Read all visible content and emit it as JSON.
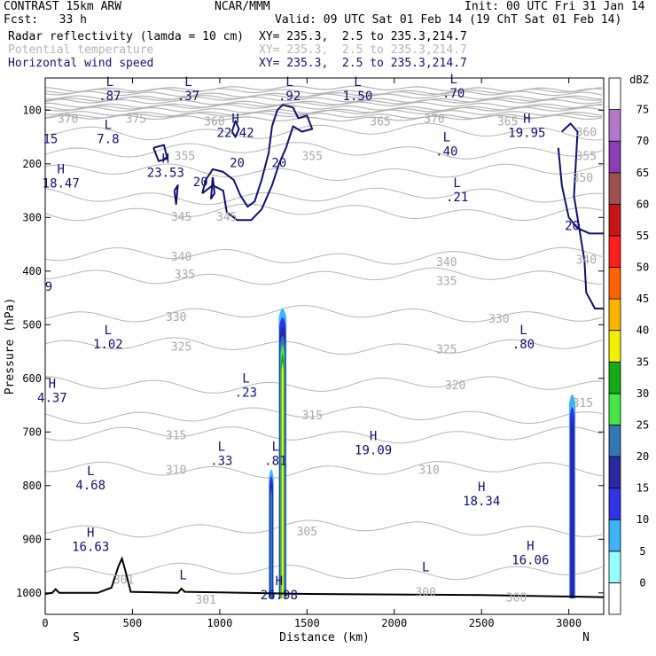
{
  "header": {
    "model": "CONTRAST 15km ARW",
    "center": "NCAR/MMM",
    "init": "Init: 00 UTC Fri 31 Jan 14",
    "fcst": "Fcst:   33 h",
    "valid": "Valid: 09 UTC Sat 01 Feb 14 (19 ChT Sat 01 Feb 14)",
    "fields": [
      {
        "name": "Radar reflectivity (lamda = 10 cm)",
        "xy": "XY= 235.3,  2.5 to 235.3,214.7",
        "color": "#000000"
      },
      {
        "name": "Potential temperature",
        "xy": "XY= 235.3,  2.5 to 235.3,214.7",
        "color": "#b4b4b4"
      },
      {
        "name": "Horizontal wind speed",
        "xy": "XY= 235.3,  2.5 to 235.3,214.7",
        "color": "#10106e"
      }
    ]
  },
  "chart_data": {
    "type": "cross-section",
    "xlabel": "Distance (km)",
    "ylabel": "Pressure (hPa)",
    "xlim": [
      0,
      3200
    ],
    "ylim": [
      1040,
      40
    ],
    "x_ticks": [
      0,
      500,
      1000,
      1500,
      2000,
      2500,
      3000
    ],
    "y_ticks": [
      100,
      200,
      300,
      400,
      500,
      600,
      700,
      800,
      900,
      1000
    ],
    "x_end_labels": {
      "left": "S",
      "right": "N"
    },
    "colorbar": {
      "unit": "dBZ",
      "levels": [
        0,
        5,
        10,
        15,
        20,
        25,
        30,
        35,
        40,
        45,
        50,
        55,
        60,
        65,
        70,
        75
      ],
      "colors": [
        "#ffffff",
        "#96ffff",
        "#3cb4f8",
        "#3232e6",
        "#2828a0",
        "#3278b4",
        "#46e646",
        "#14aa14",
        "#f0f000",
        "#ffb400",
        "#ff6400",
        "#ff1e1e",
        "#c81414",
        "#a05050",
        "#8c3cb4",
        "#b478c8",
        "#ffffff"
      ]
    },
    "theta_labels": [
      {
        "text": "370",
        "x": 130,
        "p": 115
      },
      {
        "text": "375",
        "x": 520,
        "p": 115
      },
      {
        "text": "360",
        "x": 970,
        "p": 120
      },
      {
        "text": "365",
        "x": 1920,
        "p": 120
      },
      {
        "text": "370",
        "x": 2230,
        "p": 115
      },
      {
        "text": "365",
        "x": 2650,
        "p": 120
      },
      {
        "text": "360",
        "x": 3100,
        "p": 140
      },
      {
        "text": "355",
        "x": 800,
        "p": 185
      },
      {
        "text": "355",
        "x": 1530,
        "p": 185
      },
      {
        "text": "355",
        "x": 3100,
        "p": 185
      },
      {
        "text": "350",
        "x": 3080,
        "p": 225
      },
      {
        "text": "345",
        "x": 780,
        "p": 298
      },
      {
        "text": "345",
        "x": 1040,
        "p": 298
      },
      {
        "text": "340",
        "x": 780,
        "p": 372
      },
      {
        "text": "340",
        "x": 2300,
        "p": 382
      },
      {
        "text": "340",
        "x": 3100,
        "p": 378
      },
      {
        "text": "335",
        "x": 800,
        "p": 405
      },
      {
        "text": "335",
        "x": 2300,
        "p": 418
      },
      {
        "text": "330",
        "x": 750,
        "p": 485
      },
      {
        "text": "330",
        "x": 2600,
        "p": 488
      },
      {
        "text": "325",
        "x": 780,
        "p": 540
      },
      {
        "text": "325",
        "x": 2300,
        "p": 545
      },
      {
        "text": "320",
        "x": 2350,
        "p": 612
      },
      {
        "text": "315",
        "x": 1530,
        "p": 668
      },
      {
        "text": "315",
        "x": 750,
        "p": 705
      },
      {
        "text": "315",
        "x": 3080,
        "p": 645
      },
      {
        "text": "310",
        "x": 750,
        "p": 770
      },
      {
        "text": "310",
        "x": 2200,
        "p": 770
      },
      {
        "text": "305",
        "x": 1500,
        "p": 885
      },
      {
        "text": "301",
        "x": 920,
        "p": 1012
      },
      {
        "text": "301",
        "x": 450,
        "p": 975
      },
      {
        "text": "300",
        "x": 2180,
        "p": 998
      },
      {
        "text": "300",
        "x": 2700,
        "p": 1008
      }
    ],
    "wind_labels": [
      {
        "text": "20",
        "x": 890,
        "p": 233
      },
      {
        "text": "20",
        "x": 1100,
        "p": 198
      },
      {
        "text": "20",
        "x": 1340,
        "p": 198
      },
      {
        "text": "20",
        "x": 3020,
        "p": 315
      }
    ],
    "extrema": [
      {
        "mark": "L",
        "value": ".87",
        "x": 370,
        "p": 65
      },
      {
        "mark": "L",
        "value": ".37",
        "x": 820,
        "p": 65
      },
      {
        "mark": "L",
        "value": ".92",
        "x": 1400,
        "p": 65
      },
      {
        "mark": "L",
        "value": "1.50",
        "x": 1790,
        "p": 65
      },
      {
        "mark": "L",
        "value": ".70",
        "x": 2340,
        "p": 60
      },
      {
        "mark": "",
        "value": "15",
        "x": 30,
        "p": 145
      },
      {
        "mark": "L",
        "value": "7.8",
        "x": 360,
        "p": 145
      },
      {
        "mark": "H",
        "value": "22.42",
        "x": 1090,
        "p": 133
      },
      {
        "mark": "H",
        "value": "19.95",
        "x": 2760,
        "p": 133
      },
      {
        "mark": "L",
        "value": ".40",
        "x": 2300,
        "p": 168
      },
      {
        "mark": "H",
        "value": "23.53",
        "x": 690,
        "p": 208
      },
      {
        "mark": "H",
        "value": "18.47",
        "x": 90,
        "p": 228
      },
      {
        "mark": "L",
        "value": ".21",
        "x": 2360,
        "p": 253
      },
      {
        "mark": "",
        "value": "9",
        "x": 20,
        "p": 420
      },
      {
        "mark": "L",
        "value": "1.02",
        "x": 360,
        "p": 528
      },
      {
        "mark": "L",
        "value": ".80",
        "x": 2740,
        "p": 528
      },
      {
        "mark": "H",
        "value": "4.37",
        "x": 40,
        "p": 628
      },
      {
        "mark": "L",
        "value": ".23",
        "x": 1150,
        "p": 618
      },
      {
        "mark": "H",
        "value": "19.09",
        "x": 1880,
        "p": 725
      },
      {
        "mark": "L",
        "value": ".33",
        "x": 1010,
        "p": 745
      },
      {
        "mark": "L",
        "value": ".81",
        "x": 1320,
        "p": 745
      },
      {
        "mark": "L",
        "value": "4.68",
        "x": 260,
        "p": 790
      },
      {
        "mark": "H",
        "value": "18.34",
        "x": 2500,
        "p": 820
      },
      {
        "mark": "H",
        "value": "16.63",
        "x": 260,
        "p": 905
      },
      {
        "mark": "H",
        "value": "16.06",
        "x": 2780,
        "p": 930
      },
      {
        "mark": "L",
        "value": "",
        "x": 790,
        "p": 985
      },
      {
        "mark": "L",
        "value": "",
        "x": 2180,
        "p": 970
      },
      {
        "mark": "H",
        "value": "26.98",
        "x": 1340,
        "p": 995
      }
    ],
    "reflectivity_cells": [
      {
        "x": 1360,
        "half_width": 22,
        "p_top": 470,
        "p_bottom": 1010,
        "max_dbz": 35
      },
      {
        "x": 1295,
        "half_width": 14,
        "p_top": 770,
        "p_bottom": 1010,
        "max_dbz": 20
      },
      {
        "x": 3020,
        "half_width": 18,
        "p_top": 630,
        "p_bottom": 1010,
        "max_dbz": 15
      }
    ]
  }
}
